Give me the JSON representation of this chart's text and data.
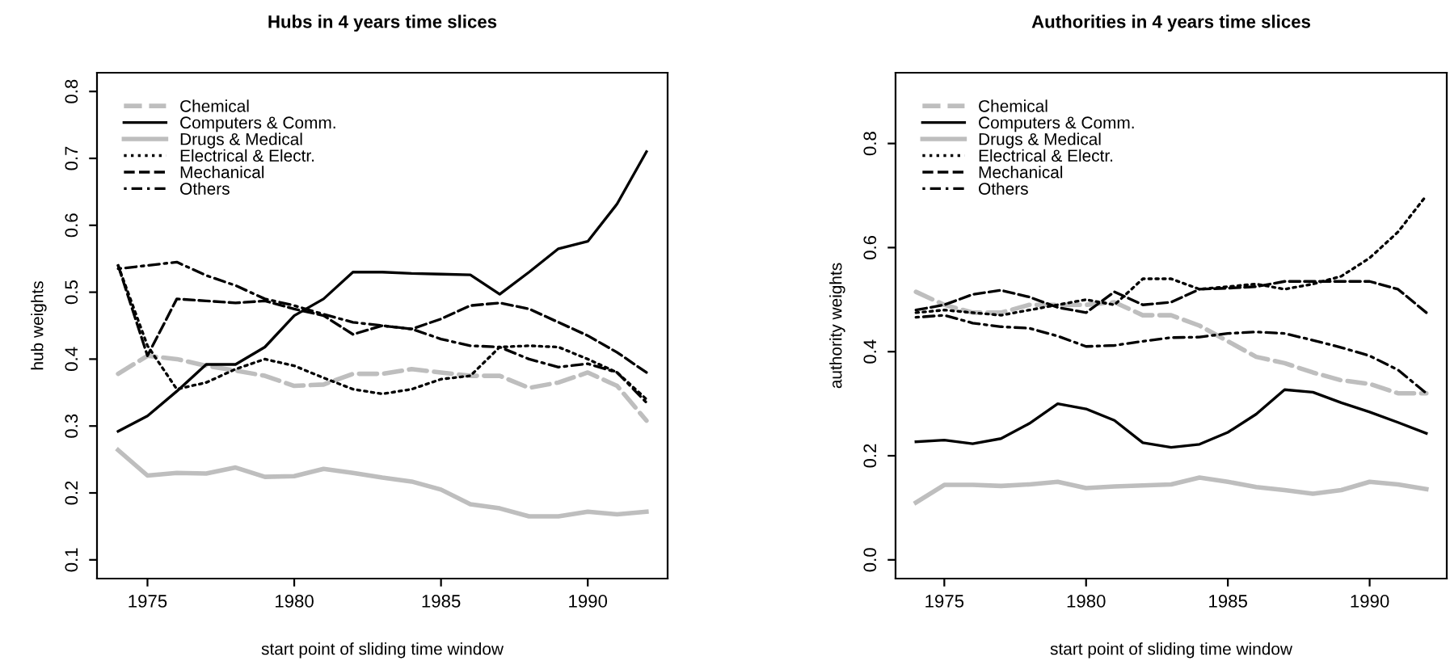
{
  "chart_data": [
    {
      "type": "line",
      "title": "Hubs in 4 years time slices",
      "xlabel": "start point of sliding time window",
      "ylabel": "hub weights",
      "x": [
        1974,
        1975,
        1976,
        1977,
        1978,
        1979,
        1980,
        1981,
        1982,
        1983,
        1984,
        1985,
        1986,
        1987,
        1988,
        1989,
        1990,
        1991,
        1992
      ],
      "xlim": [
        1973.28,
        1992.72
      ],
      "xticks": [
        1975,
        1980,
        1985,
        1990
      ],
      "ylim": [
        0.072,
        0.828
      ],
      "yticks": [
        0.1,
        0.2,
        0.3,
        0.4,
        0.5,
        0.6,
        0.7,
        0.8
      ],
      "grid": false,
      "legend": "top left",
      "series": [
        {
          "name": "Chemical",
          "color": "#bebebe",
          "line_style": "dashed",
          "values": [
            0.378,
            0.405,
            0.4,
            0.39,
            0.383,
            0.375,
            0.36,
            0.362,
            0.378,
            0.378,
            0.385,
            0.38,
            0.375,
            0.375,
            0.357,
            0.365,
            0.38,
            0.36,
            0.308
          ]
        },
        {
          "name": "Computers & Comm.",
          "color": "#000000",
          "line_style": "solid",
          "values": [
            0.292,
            0.315,
            0.352,
            0.392,
            0.392,
            0.418,
            0.465,
            0.49,
            0.53,
            0.53,
            0.528,
            0.527,
            0.526,
            0.497,
            0.53,
            0.565,
            0.576,
            0.632,
            0.71
          ]
        },
        {
          "name": "Drugs & Medical",
          "color": "#bebebe",
          "line_style": "solid",
          "values": [
            0.264,
            0.226,
            0.23,
            0.229,
            0.238,
            0.224,
            0.225,
            0.236,
            0.23,
            0.223,
            0.217,
            0.205,
            0.183,
            0.177,
            0.165,
            0.165,
            0.172,
            0.168,
            0.172
          ]
        },
        {
          "name": "Electrical & Electr.",
          "color": "#000000",
          "line_style": "dotted",
          "values": [
            0.54,
            0.42,
            0.355,
            0.365,
            0.385,
            0.4,
            0.39,
            0.372,
            0.355,
            0.348,
            0.355,
            0.37,
            0.375,
            0.418,
            0.42,
            0.418,
            0.4,
            0.38,
            0.34
          ]
        },
        {
          "name": "Mechanical",
          "color": "#000000",
          "line_style": "dashed",
          "values": [
            0.54,
            0.405,
            0.49,
            0.487,
            0.484,
            0.487,
            0.475,
            0.465,
            0.437,
            0.45,
            0.445,
            0.46,
            0.48,
            0.484,
            0.475,
            0.455,
            0.435,
            0.41,
            0.38
          ]
        },
        {
          "name": "Others",
          "color": "#000000",
          "line_style": "dashdot",
          "values": [
            0.535,
            0.54,
            0.545,
            0.525,
            0.51,
            0.49,
            0.48,
            0.467,
            0.455,
            0.45,
            0.445,
            0.43,
            0.42,
            0.418,
            0.4,
            0.388,
            0.393,
            0.38,
            0.335
          ]
        }
      ]
    },
    {
      "type": "line",
      "title": "Authorities in 4 years time slices",
      "xlabel": "start point of sliding time window",
      "ylabel": "authority weights",
      "x": [
        1974,
        1975,
        1976,
        1977,
        1978,
        1979,
        1980,
        1981,
        1982,
        1983,
        1984,
        1985,
        1986,
        1987,
        1988,
        1989,
        1990,
        1991,
        1992
      ],
      "xlim": [
        1973.28,
        1992.72
      ],
      "xticks": [
        1975,
        1980,
        1985,
        1990
      ],
      "ylim": [
        -0.036,
        0.936
      ],
      "yticks": [
        {
          "value": 0,
          "label": "0.0"
        },
        0.2,
        0.4,
        0.6,
        0.8
      ],
      "grid": false,
      "legend": "top left",
      "series": [
        {
          "name": "Chemical",
          "color": "#bebebe",
          "line_style": "dashed",
          "values": [
            0.515,
            0.49,
            0.475,
            0.475,
            0.49,
            0.49,
            0.49,
            0.495,
            0.47,
            0.47,
            0.45,
            0.42,
            0.39,
            0.378,
            0.36,
            0.345,
            0.338,
            0.32,
            0.32
          ]
        },
        {
          "name": "Computers & Comm.",
          "color": "#000000",
          "line_style": "solid",
          "values": [
            0.227,
            0.23,
            0.223,
            0.233,
            0.262,
            0.3,
            0.29,
            0.268,
            0.225,
            0.216,
            0.222,
            0.245,
            0.28,
            0.327,
            0.322,
            0.302,
            0.284,
            0.264,
            0.243
          ]
        },
        {
          "name": "Drugs & Medical",
          "color": "#bebebe",
          "line_style": "solid",
          "values": [
            0.11,
            0.144,
            0.144,
            0.142,
            0.145,
            0.15,
            0.138,
            0.141,
            0.143,
            0.145,
            0.158,
            0.15,
            0.14,
            0.134,
            0.127,
            0.134,
            0.15,
            0.145,
            0.136
          ]
        },
        {
          "name": "Electrical & Electr.",
          "color": "#000000",
          "line_style": "dotted",
          "values": [
            0.475,
            0.48,
            0.475,
            0.47,
            0.48,
            0.49,
            0.5,
            0.49,
            0.54,
            0.54,
            0.52,
            0.525,
            0.53,
            0.52,
            0.53,
            0.545,
            0.58,
            0.63,
            0.7
          ]
        },
        {
          "name": "Mechanical",
          "color": "#000000",
          "line_style": "dashed",
          "values": [
            0.48,
            0.49,
            0.51,
            0.518,
            0.505,
            0.485,
            0.475,
            0.515,
            0.49,
            0.495,
            0.52,
            0.522,
            0.525,
            0.535,
            0.535,
            0.535,
            0.535,
            0.52,
            0.475
          ]
        },
        {
          "name": "Others",
          "color": "#000000",
          "line_style": "dashdot",
          "values": [
            0.466,
            0.47,
            0.455,
            0.448,
            0.445,
            0.43,
            0.41,
            0.412,
            0.42,
            0.427,
            0.428,
            0.435,
            0.438,
            0.435,
            0.422,
            0.408,
            0.392,
            0.365,
            0.32
          ]
        }
      ]
    }
  ]
}
